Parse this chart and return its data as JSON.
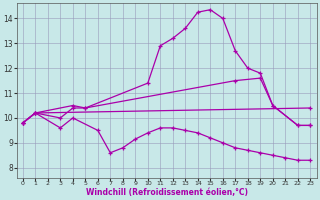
{
  "bg_color": "#c8e8e8",
  "line_color": "#aa00aa",
  "grid_color": "#9999bb",
  "xlabel": "Windchill (Refroidissement éolien,°C)",
  "ylabel_ticks": [
    8,
    9,
    10,
    11,
    12,
    13,
    14
  ],
  "xlim": [
    -0.5,
    23.5
  ],
  "ylim": [
    7.6,
    14.6
  ],
  "xticks": [
    0,
    1,
    2,
    3,
    4,
    5,
    6,
    7,
    8,
    9,
    10,
    11,
    12,
    13,
    14,
    15,
    16,
    17,
    18,
    19,
    20,
    21,
    22,
    23
  ],
  "lines": [
    {
      "x": [
        0,
        1,
        4,
        5,
        10,
        11,
        12,
        13,
        14,
        15,
        16,
        17,
        18,
        19,
        20,
        22,
        23
      ],
      "y": [
        9.8,
        10.2,
        10.5,
        10.4,
        11.4,
        12.9,
        13.2,
        13.6,
        14.25,
        14.35,
        14.0,
        12.7,
        12.0,
        11.8,
        10.5,
        9.7,
        9.7
      ]
    },
    {
      "x": [
        0,
        1,
        3,
        4,
        5,
        17,
        19,
        20,
        22,
        23
      ],
      "y": [
        9.8,
        10.2,
        10.0,
        10.4,
        10.4,
        11.5,
        11.6,
        10.5,
        9.7,
        9.7
      ]
    },
    {
      "x": [
        0,
        1,
        23
      ],
      "y": [
        9.8,
        10.2,
        10.4
      ]
    },
    {
      "x": [
        0,
        1,
        3,
        4,
        6,
        7,
        8,
        9,
        10,
        11,
        12,
        13,
        14,
        15,
        16,
        17,
        18,
        19,
        20,
        21,
        22,
        23
      ],
      "y": [
        9.8,
        10.2,
        9.6,
        10.0,
        9.5,
        8.6,
        8.8,
        9.15,
        9.4,
        9.6,
        9.6,
        9.5,
        9.4,
        9.2,
        9.0,
        8.8,
        8.7,
        8.6,
        8.5,
        8.4,
        8.3,
        8.3
      ]
    }
  ]
}
